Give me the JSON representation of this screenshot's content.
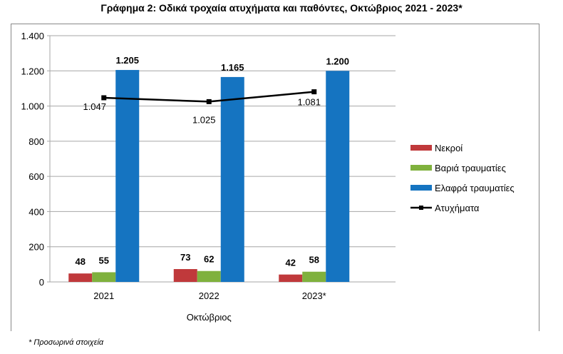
{
  "chart_data": {
    "type": "bar",
    "title": "Γράφημα 2: Οδικά τροχαία ατυχήματα και παθόντες, Οκτώβριος 2021 - 2023*",
    "xlabel": "Οκτώβριος",
    "ylabel": "",
    "categories": [
      "2021",
      "2022",
      "2023*"
    ],
    "ylim": [
      0,
      1400
    ],
    "yticks": [
      0,
      200,
      400,
      600,
      800,
      1000,
      1200,
      1400
    ],
    "ytick_labels": [
      "0",
      "200",
      "400",
      "600",
      "800",
      "1.000",
      "1.200",
      "1.400"
    ],
    "grid": true,
    "legend_position": "right",
    "series": [
      {
        "name": "Νεκροί",
        "kind": "bar",
        "color": "#c0393b",
        "values": [
          48,
          73,
          42
        ],
        "labels": [
          "48",
          "73",
          "42"
        ]
      },
      {
        "name": "Βαριά τραυματίες",
        "kind": "bar",
        "color": "#7fb13d",
        "values": [
          55,
          62,
          58
        ],
        "labels": [
          "55",
          "62",
          "58"
        ]
      },
      {
        "name": "Ελαφρά τραυματίες",
        "kind": "bar",
        "color": "#1574c1",
        "values": [
          1205,
          1165,
          1200
        ],
        "labels": [
          "1.205",
          "1.165",
          "1.200"
        ]
      },
      {
        "name": "Ατυχήματα",
        "kind": "line",
        "color": "#000000",
        "values": [
          1047,
          1025,
          1081
        ],
        "labels": [
          "1.047",
          "1.025",
          "1.081"
        ]
      }
    ]
  },
  "footnote": "* Προσωρινά στοιχεία"
}
